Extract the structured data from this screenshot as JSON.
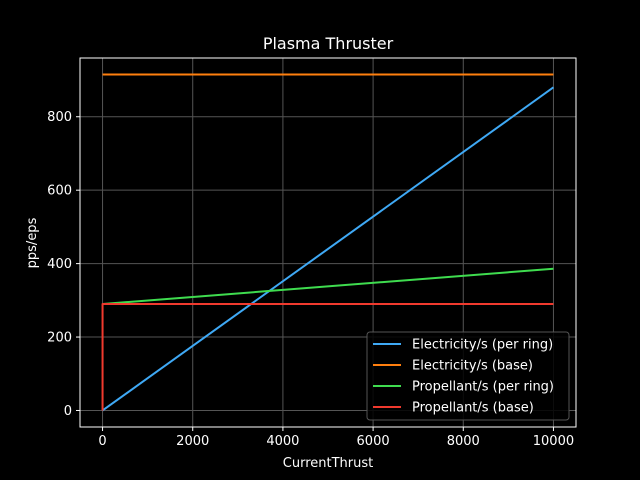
{
  "chart_data": {
    "type": "line",
    "title": "Plasma Thruster",
    "xlabel": "CurrentThrust",
    "ylabel": "pps/eps",
    "xlim": [
      -500,
      10500
    ],
    "ylim": [
      -45,
      960
    ],
    "xticks": [
      0,
      2000,
      4000,
      6000,
      8000,
      10000
    ],
    "yticks": [
      0,
      200,
      400,
      600,
      800
    ],
    "grid": true,
    "legend_position": "lower-right",
    "series": [
      {
        "name": "Electricity/s (per ring)",
        "color": "#3fa9f5",
        "x": [
          0,
          10000
        ],
        "y": [
          0,
          880
        ]
      },
      {
        "name": "Electricity/s (base)",
        "color": "#ff7f0e",
        "x": [
          0,
          10000
        ],
        "y": [
          915,
          915
        ]
      },
      {
        "name": "Propellant/s (per ring)",
        "color": "#3fdc4f",
        "x": [
          0,
          10000
        ],
        "y": [
          290,
          386
        ]
      },
      {
        "name": "Propellant/s (base)",
        "color": "#f03a2e",
        "x": [
          0,
          0,
          10000
        ],
        "y": [
          0,
          290,
          290
        ]
      }
    ]
  }
}
